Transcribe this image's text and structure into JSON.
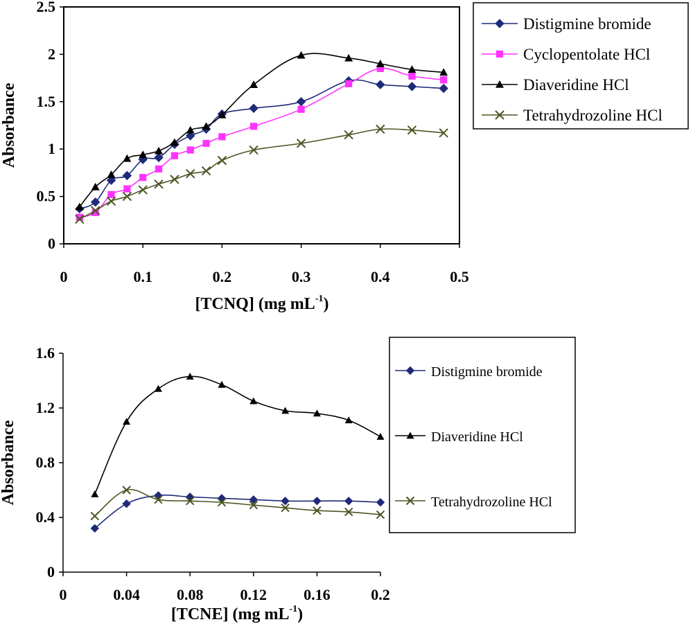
{
  "charts": [
    {
      "type": "line",
      "xlabel": "[TCNQ] (mg mL",
      "xlabel_sup": "-1",
      "xlabel_close": ")",
      "ylabel": "Absorbance",
      "xlim": [
        0,
        0.5
      ],
      "ylim": [
        0,
        2.5
      ],
      "x_ticks": [
        0,
        0.1,
        0.2,
        0.3,
        0.4,
        0.5
      ],
      "x_tick_labels": [
        "0",
        "0.1",
        "0.2",
        "0.3",
        "0.4",
        "0.5"
      ],
      "y_ticks": [
        0,
        0.5,
        1,
        1.5,
        2,
        2.5
      ],
      "y_tick_labels": [
        "0",
        "0.5",
        "1",
        "1.5",
        "2",
        "2.5"
      ],
      "legend_position": "right",
      "series": [
        {
          "name": "Distigmine bromide",
          "marker": "diamond",
          "color": "#1f2a78",
          "x": [
            0.02,
            0.04,
            0.06,
            0.08,
            0.1,
            0.12,
            0.14,
            0.16,
            0.18,
            0.2,
            0.24,
            0.3,
            0.36,
            0.4,
            0.44,
            0.48
          ],
          "y": [
            0.37,
            0.44,
            0.67,
            0.72,
            0.89,
            0.91,
            1.05,
            1.14,
            1.21,
            1.37,
            1.43,
            1.5,
            1.72,
            1.68,
            1.66,
            1.64
          ]
        },
        {
          "name": "Cyclopentolate HCl",
          "marker": "square",
          "color": "#ff33ff",
          "x": [
            0.02,
            0.04,
            0.06,
            0.08,
            0.1,
            0.12,
            0.14,
            0.16,
            0.18,
            0.2,
            0.24,
            0.3,
            0.36,
            0.4,
            0.44,
            0.48
          ],
          "y": [
            0.28,
            0.33,
            0.52,
            0.58,
            0.7,
            0.79,
            0.93,
            0.99,
            1.06,
            1.13,
            1.24,
            1.42,
            1.69,
            1.85,
            1.77,
            1.73
          ]
        },
        {
          "name": "Diaveridine HCl",
          "marker": "triangle",
          "color": "#000000",
          "x": [
            0.02,
            0.04,
            0.06,
            0.08,
            0.1,
            0.12,
            0.14,
            0.16,
            0.18,
            0.2,
            0.24,
            0.3,
            0.36,
            0.4,
            0.44,
            0.48
          ],
          "y": [
            0.39,
            0.6,
            0.73,
            0.9,
            0.94,
            0.98,
            1.07,
            1.2,
            1.24,
            1.36,
            1.68,
            1.99,
            1.96,
            1.9,
            1.84,
            1.81
          ]
        },
        {
          "name": "Tetrahydrozoline HCl",
          "marker": "x",
          "color": "#4d5523",
          "x": [
            0.02,
            0.04,
            0.06,
            0.08,
            0.1,
            0.12,
            0.14,
            0.16,
            0.18,
            0.2,
            0.24,
            0.3,
            0.36,
            0.4,
            0.44,
            0.48
          ],
          "y": [
            0.26,
            0.35,
            0.45,
            0.5,
            0.57,
            0.63,
            0.68,
            0.74,
            0.77,
            0.88,
            0.99,
            1.06,
            1.15,
            1.21,
            1.2,
            1.17
          ]
        }
      ]
    },
    {
      "type": "line",
      "xlabel": "[TCNE] (mg mL",
      "xlabel_sup": "-1",
      "xlabel_close": ")",
      "ylabel": "Absorbance",
      "xlim": [
        0,
        0.2
      ],
      "ylim": [
        0,
        1.6
      ],
      "x_ticks": [
        0,
        0.04,
        0.08,
        0.12,
        0.16,
        0.2
      ],
      "x_tick_labels": [
        "0",
        "0.04",
        "0.08",
        "0.12",
        "0.16",
        "0.2"
      ],
      "y_ticks": [
        0,
        0.4,
        0.8,
        1.2,
        1.6
      ],
      "y_tick_labels": [
        "0",
        "0.4",
        "0.8",
        "1.2",
        "1.6"
      ],
      "legend_position": "right",
      "series": [
        {
          "name": "Distigmine bromide",
          "marker": "diamond",
          "color": "#1f2a78",
          "x": [
            0.02,
            0.04,
            0.06,
            0.08,
            0.1,
            0.12,
            0.14,
            0.16,
            0.18,
            0.2
          ],
          "y": [
            0.32,
            0.5,
            0.56,
            0.55,
            0.54,
            0.53,
            0.52,
            0.52,
            0.52,
            0.51
          ]
        },
        {
          "name": "Diaveridine HCl",
          "marker": "triangle",
          "color": "#000000",
          "x": [
            0.02,
            0.04,
            0.06,
            0.08,
            0.1,
            0.12,
            0.14,
            0.16,
            0.18,
            0.2
          ],
          "y": [
            0.57,
            1.1,
            1.34,
            1.43,
            1.37,
            1.25,
            1.18,
            1.16,
            1.11,
            0.99
          ]
        },
        {
          "name": "Tetrahydrozoline HCl",
          "marker": "x",
          "color": "#4d5523",
          "x": [
            0.02,
            0.04,
            0.06,
            0.08,
            0.1,
            0.12,
            0.14,
            0.16,
            0.18,
            0.2
          ],
          "y": [
            0.41,
            0.6,
            0.53,
            0.52,
            0.51,
            0.49,
            0.47,
            0.45,
            0.44,
            0.42
          ]
        }
      ]
    }
  ]
}
